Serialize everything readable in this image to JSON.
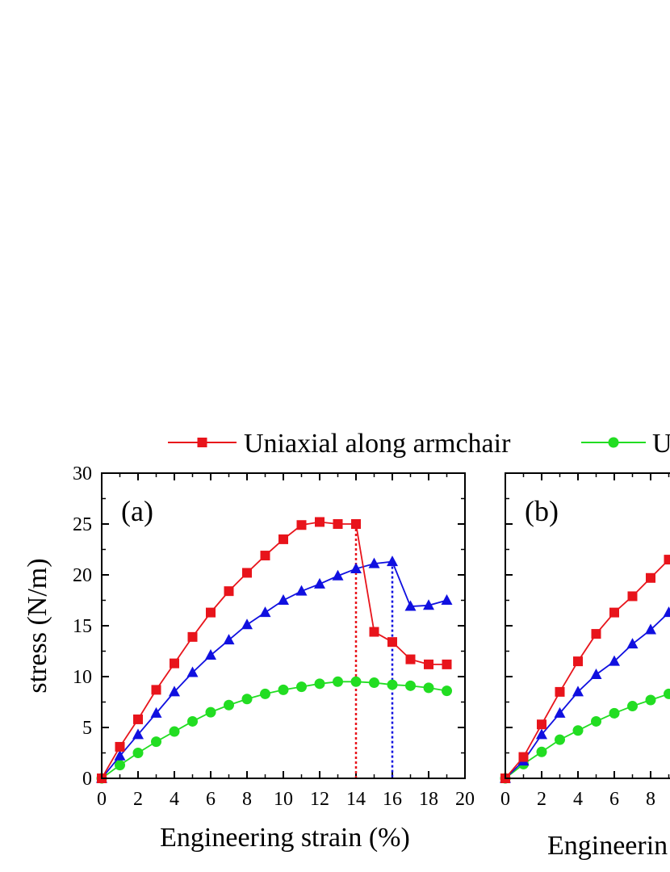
{
  "legend": {
    "items": [
      {
        "label": "Uniaxial along armchair",
        "color": "#e8141b",
        "marker": "square"
      },
      {
        "label": "U",
        "color": "#22dd22",
        "marker": "circle"
      }
    ]
  },
  "chart_data": [
    {
      "type": "line",
      "panel_label": "(a)",
      "xlabel": "Engineering strain (%)",
      "ylabel": "stress (N/m)",
      "xlim": [
        0,
        20
      ],
      "ylim": [
        0,
        30
      ],
      "xticks": [
        0,
        2,
        4,
        6,
        8,
        10,
        12,
        14,
        16,
        18,
        20
      ],
      "yticks": [
        0,
        5,
        10,
        15,
        20,
        25,
        30
      ],
      "series": [
        {
          "name": "Uniaxial along armchair",
          "color": "#e8141b",
          "marker": "square",
          "x": [
            0,
            1,
            2,
            3,
            4,
            5,
            6,
            7,
            8,
            9,
            10,
            11,
            12,
            13,
            14,
            15,
            16,
            17,
            18,
            19
          ],
          "y": [
            0,
            3.1,
            5.8,
            8.7,
            11.3,
            13.9,
            16.3,
            18.4,
            20.2,
            21.9,
            23.5,
            24.9,
            25.2,
            25.0,
            25.0,
            14.4,
            13.4,
            11.7,
            11.2,
            11.2
          ]
        },
        {
          "color": "#1010e0",
          "marker": "triangle",
          "x": [
            0,
            1,
            2,
            3,
            4,
            5,
            6,
            7,
            8,
            9,
            10,
            11,
            12,
            13,
            14,
            15,
            16,
            17,
            18,
            19
          ],
          "y": [
            0,
            2.2,
            4.3,
            6.4,
            8.5,
            10.4,
            12.1,
            13.6,
            15.1,
            16.3,
            17.5,
            18.4,
            19.1,
            19.9,
            20.6,
            21.1,
            21.3,
            16.9,
            17.0,
            17.5
          ]
        },
        {
          "name": "U",
          "color": "#22dd22",
          "marker": "circle",
          "x": [
            0,
            1,
            2,
            3,
            4,
            5,
            6,
            7,
            8,
            9,
            10,
            11,
            12,
            13,
            14,
            15,
            16,
            17,
            18,
            19
          ],
          "y": [
            0,
            1.3,
            2.5,
            3.6,
            4.6,
            5.6,
            6.5,
            7.2,
            7.8,
            8.3,
            8.7,
            9.0,
            9.3,
            9.5,
            9.5,
            9.4,
            9.2,
            9.1,
            8.9,
            8.6
          ]
        }
      ],
      "annotations": [
        {
          "x": 14,
          "y_top": 25.0,
          "color": "#e8141b",
          "style": "dotted"
        },
        {
          "x": 16,
          "y_top": 21.3,
          "color": "#1010e0",
          "style": "dotted"
        }
      ]
    },
    {
      "type": "line",
      "panel_label": "(b)",
      "xlabel": "Engineerin",
      "ylabel": "",
      "xlim": [
        0,
        20
      ],
      "ylim": [
        0,
        30
      ],
      "xticks": [
        0,
        2,
        4,
        6,
        8
      ],
      "series": [
        {
          "name": "Uniaxial along armchair",
          "color": "#e8141b",
          "marker": "square",
          "x": [
            0,
            1,
            2,
            3,
            4,
            5,
            6,
            7,
            8,
            9
          ],
          "y": [
            0,
            2.1,
            5.3,
            8.5,
            11.5,
            14.2,
            16.3,
            17.9,
            19.7,
            21.5
          ]
        },
        {
          "color": "#1010e0",
          "marker": "triangle",
          "x": [
            0,
            1,
            2,
            3,
            4,
            5,
            6,
            7,
            8,
            9
          ],
          "y": [
            0,
            1.7,
            4.3,
            6.4,
            8.5,
            10.2,
            11.5,
            13.2,
            14.6,
            16.3
          ]
        },
        {
          "name": "U",
          "color": "#22dd22",
          "marker": "circle",
          "x": [
            0,
            1,
            2,
            3,
            4,
            5,
            6,
            7,
            8,
            9
          ],
          "y": [
            0,
            1.4,
            2.6,
            3.8,
            4.7,
            5.6,
            6.4,
            7.1,
            7.7,
            8.3
          ]
        }
      ]
    }
  ]
}
